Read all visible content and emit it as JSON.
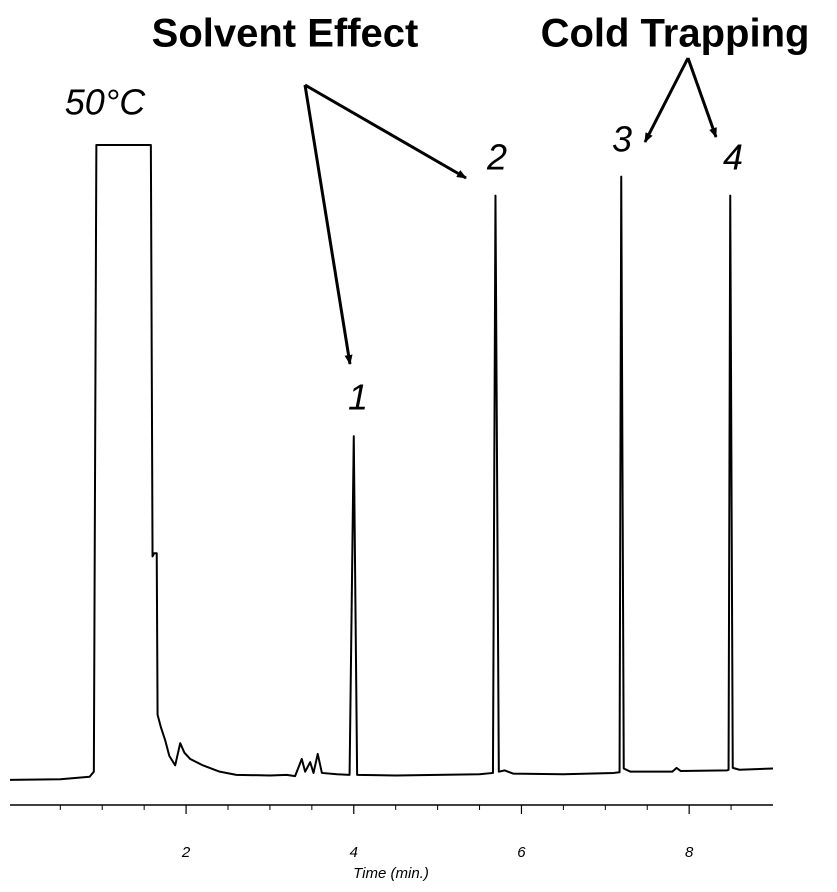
{
  "chart_data": {
    "type": "line",
    "annotations": [
      "Solvent Effect",
      "Cold Trapping",
      "50°C",
      "1",
      "2",
      "3",
      "4"
    ],
    "x_label": "Time (min.)",
    "xlim": [
      -0.1,
      9
    ],
    "ylim": [
      0,
      100
    ],
    "xticks": [
      2,
      4,
      6,
      8
    ],
    "xminorticks": [
      0.5,
      1,
      1.5,
      2.5,
      3,
      3.5,
      4.5,
      5,
      5.5,
      6.5,
      7,
      7.5,
      8.5
    ],
    "color": "#000000",
    "x": [
      -0.1,
      0.5,
      0.85,
      0.9,
      0.93,
      1.58,
      1.6,
      1.62,
      1.65,
      1.66,
      1.7,
      1.75,
      1.8,
      1.87,
      1.93,
      1.98,
      2.05,
      2.2,
      2.4,
      2.6,
      3.0,
      3.2,
      3.3,
      3.38,
      3.42,
      3.48,
      3.52,
      3.57,
      3.62,
      3.8,
      3.95,
      4.0,
      4.04,
      4.5,
      5.0,
      5.5,
      5.66,
      5.69,
      5.73,
      5.8,
      5.9,
      6.5,
      7.1,
      7.17,
      7.19,
      7.22,
      7.3,
      7.8,
      7.85,
      7.9,
      8.45,
      8.47,
      8.49,
      8.52,
      8.6,
      9.0
    ],
    "values": [
      -0.3,
      -0.2,
      0.2,
      1,
      100,
      100,
      35,
      35.5,
      35.5,
      10,
      8,
      6,
      3.5,
      2,
      5.5,
      4,
      3,
      2,
      1,
      0.5,
      0.4,
      0.5,
      0.3,
      3,
      1,
      2.5,
      0.8,
      3.8,
      0.8,
      0.6,
      0.5,
      54,
      0.5,
      0.4,
      0.5,
      0.6,
      0.8,
      92,
      1,
      1.2,
      0.7,
      0.6,
      0.8,
      0.9,
      95,
      1.5,
      1,
      1,
      1.6,
      1.1,
      1.2,
      1.3,
      92,
      1.6,
      1.3,
      1.5
    ]
  }
}
